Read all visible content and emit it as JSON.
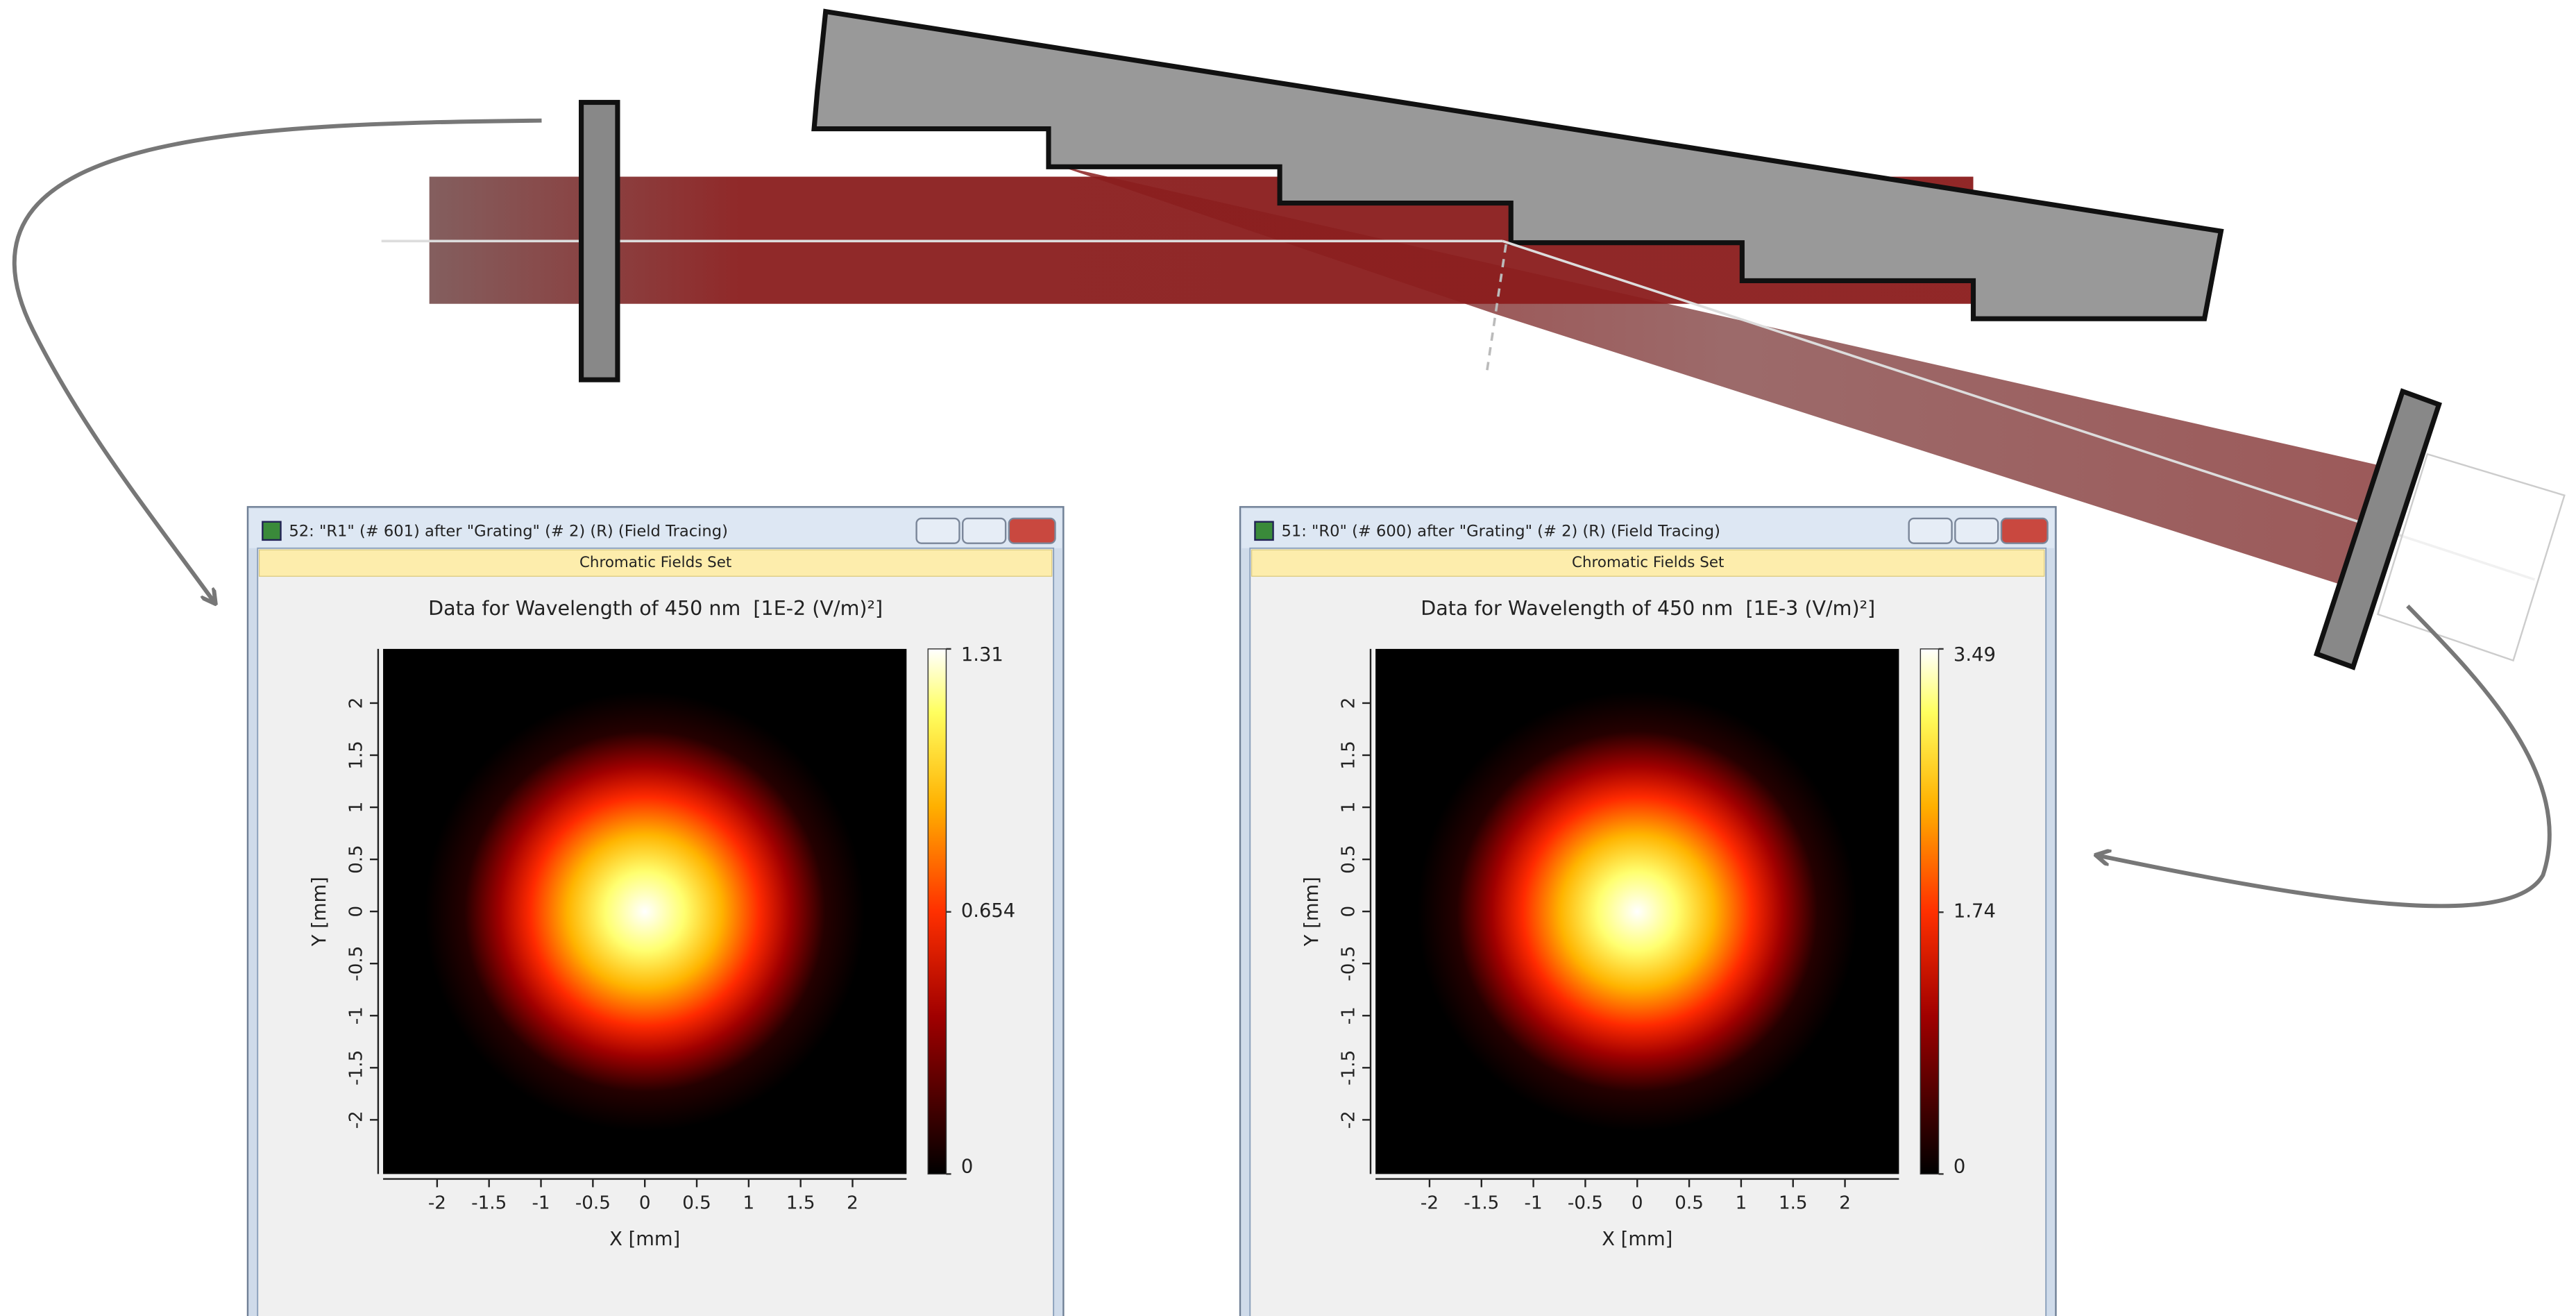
{
  "windows": [
    {
      "title": "52: \"R1\" (# 601) after \"Grating\" (# 2) (R) (Field Tracing)",
      "tab": "Chromatic Fields Set",
      "chart_data": {
        "type": "heatmap",
        "title": "Data for Wavelength of 450 nm  [1E-2 (V/m)²]",
        "x_label": "X [mm]",
        "y_label": "Y [mm]",
        "xlim": [
          -2.52,
          2.52
        ],
        "ylim": [
          -2.52,
          2.52
        ],
        "xticks": [
          -2,
          -1.5,
          -1,
          -0.5,
          0,
          0.5,
          1,
          1.5,
          2
        ],
        "yticks": [
          -2,
          -1.5,
          -1,
          -0.5,
          0,
          0.5,
          1,
          1.5,
          2
        ],
        "clim": [
          0,
          1.31
        ],
        "cticks": [
          0,
          0.654,
          1.31
        ]
      }
    },
    {
      "title": "51: \"R0\" (# 600) after \"Grating\" (# 2) (R) (Field Tracing)",
      "tab": "Chromatic Fields Set",
      "chart_data": {
        "type": "heatmap",
        "title": "Data for Wavelength of 450 nm  [1E-3 (V/m)²]",
        "x_label": "X [mm]",
        "y_label": "Y [mm]",
        "xlim": [
          -2.52,
          2.52
        ],
        "ylim": [
          -2.52,
          2.52
        ],
        "xticks": [
          -2,
          -1.5,
          -1,
          -0.5,
          0,
          0.5,
          1,
          1.5,
          2
        ],
        "yticks": [
          -2,
          -1.5,
          -1,
          -0.5,
          0,
          0.5,
          1,
          1.5,
          2
        ],
        "clim": [
          0,
          3.49
        ],
        "cticks": [
          0,
          1.74,
          3.49
        ]
      }
    }
  ]
}
